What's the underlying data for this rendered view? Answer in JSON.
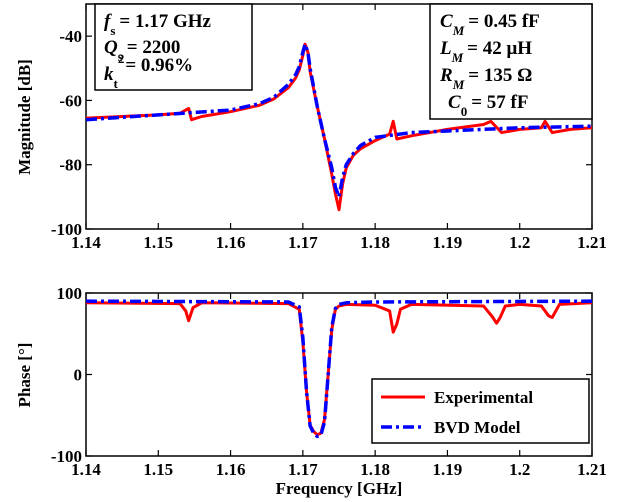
{
  "chart_data": [
    {
      "type": "line",
      "ylabel": "Magnitude [dB]",
      "xlim": [
        1.14,
        1.21
      ],
      "ylim": [
        -100,
        -30
      ],
      "xticks": [
        1.14,
        1.15,
        1.16,
        1.17,
        1.18,
        1.19,
        1.2,
        1.21
      ],
      "xtick_labels": [
        "1.14",
        "1.15",
        "1.16",
        "1.17",
        "1.18",
        "1.19",
        "1.2",
        "1.21"
      ],
      "yticks": [
        -100,
        -80,
        -60,
        -40
      ],
      "ytick_labels": [
        "-100",
        "-80",
        "-60",
        "-40"
      ],
      "grid": false,
      "annotations": {
        "left": [
          "= 1.17 GHz",
          "= 2200",
          "= 0.96%"
        ],
        "right": [
          "= 0.45 fF",
          "= 42 μH",
          "= 135 Ω",
          "= 57 fF"
        ]
      },
      "series": [
        {
          "name": "Experimental",
          "color": "#ff0000",
          "style": "solid",
          "x": [
            1.14,
            1.145,
            1.15,
            1.153,
            1.1542,
            1.1546,
            1.156,
            1.16,
            1.164,
            1.166,
            1.168,
            1.169,
            1.1695,
            1.17,
            1.1703,
            1.1707,
            1.171,
            1.172,
            1.173,
            1.174,
            1.1745,
            1.175,
            1.1755,
            1.176,
            1.177,
            1.178,
            1.18,
            1.182,
            1.1825,
            1.183,
            1.185,
            1.19,
            1.195,
            1.196,
            1.1975,
            1.2,
            1.203,
            1.2035,
            1.2045,
            1.207,
            1.21
          ],
          "y": [
            -65.5,
            -65,
            -64.5,
            -64,
            -62.5,
            -66,
            -65,
            -63.5,
            -61.5,
            -59.5,
            -56,
            -53,
            -50.5,
            -46,
            -42.5,
            -45,
            -51,
            -62,
            -72,
            -83,
            -89,
            -94,
            -86,
            -81,
            -77,
            -75,
            -72.5,
            -70.5,
            -66.5,
            -72,
            -71,
            -69,
            -67.5,
            -66.5,
            -70,
            -69,
            -68.5,
            -66.5,
            -70,
            -69,
            -68.5
          ]
        },
        {
          "name": "BVD Model",
          "color": "#0000ff",
          "style": "dashdot",
          "x": [
            1.14,
            1.15,
            1.16,
            1.164,
            1.166,
            1.168,
            1.169,
            1.1695,
            1.17,
            1.1703,
            1.1707,
            1.171,
            1.172,
            1.173,
            1.174,
            1.1745,
            1.175,
            1.1755,
            1.176,
            1.177,
            1.178,
            1.18,
            1.185,
            1.19,
            1.2,
            1.21
          ],
          "y": [
            -66,
            -64.5,
            -63,
            -61,
            -59,
            -55,
            -52,
            -49.5,
            -45,
            -42.5,
            -45,
            -50,
            -62,
            -72,
            -81,
            -87,
            -90,
            -84,
            -80,
            -76.5,
            -74,
            -71.5,
            -70,
            -69.5,
            -68.5,
            -68
          ]
        }
      ]
    },
    {
      "type": "line",
      "xlabel": "Frequency [GHz]",
      "ylabel": "Phase [°]",
      "xlim": [
        1.14,
        1.21
      ],
      "ylim": [
        -100,
        100
      ],
      "xticks": [
        1.14,
        1.15,
        1.16,
        1.17,
        1.18,
        1.19,
        1.2,
        1.21
      ],
      "xtick_labels": [
        "1.14",
        "1.15",
        "1.16",
        "1.17",
        "1.18",
        "1.19",
        "1.2",
        "1.21"
      ],
      "yticks": [
        -100,
        0,
        100
      ],
      "ytick_labels": [
        "-100",
        "0",
        "100"
      ],
      "grid": false,
      "legend_position": "bottom-right",
      "series": [
        {
          "name": "Experimental",
          "color": "#ff0000",
          "style": "solid",
          "x": [
            1.14,
            1.153,
            1.1538,
            1.1542,
            1.1548,
            1.156,
            1.168,
            1.1695,
            1.17,
            1.1705,
            1.171,
            1.1715,
            1.172,
            1.1725,
            1.173,
            1.1735,
            1.174,
            1.1745,
            1.175,
            1.176,
            1.18,
            1.182,
            1.1825,
            1.183,
            1.1835,
            1.185,
            1.195,
            1.1962,
            1.1968,
            1.1973,
            1.198,
            1.2,
            1.203,
            1.204,
            1.2045,
            1.2055,
            1.21
          ],
          "y": [
            88,
            87,
            78,
            66,
            82,
            88,
            87,
            80,
            40,
            -20,
            -62,
            -70,
            -74,
            -72,
            -55,
            0,
            55,
            80,
            84,
            86,
            85,
            78,
            52,
            62,
            80,
            86,
            84,
            71,
            63,
            70,
            84,
            86,
            84,
            72,
            70,
            86,
            88
          ]
        },
        {
          "name": "BVD Model",
          "color": "#0000ff",
          "style": "dashdot",
          "x": [
            1.14,
            1.168,
            1.1695,
            1.17,
            1.1705,
            1.171,
            1.1715,
            1.172,
            1.1725,
            1.173,
            1.1735,
            1.174,
            1.1745,
            1.175,
            1.176,
            1.18,
            1.21
          ],
          "y": [
            90,
            89,
            83,
            45,
            -20,
            -63,
            -72,
            -76,
            -74,
            -58,
            0,
            58,
            81,
            86,
            88,
            89,
            90
          ]
        }
      ]
    }
  ]
}
